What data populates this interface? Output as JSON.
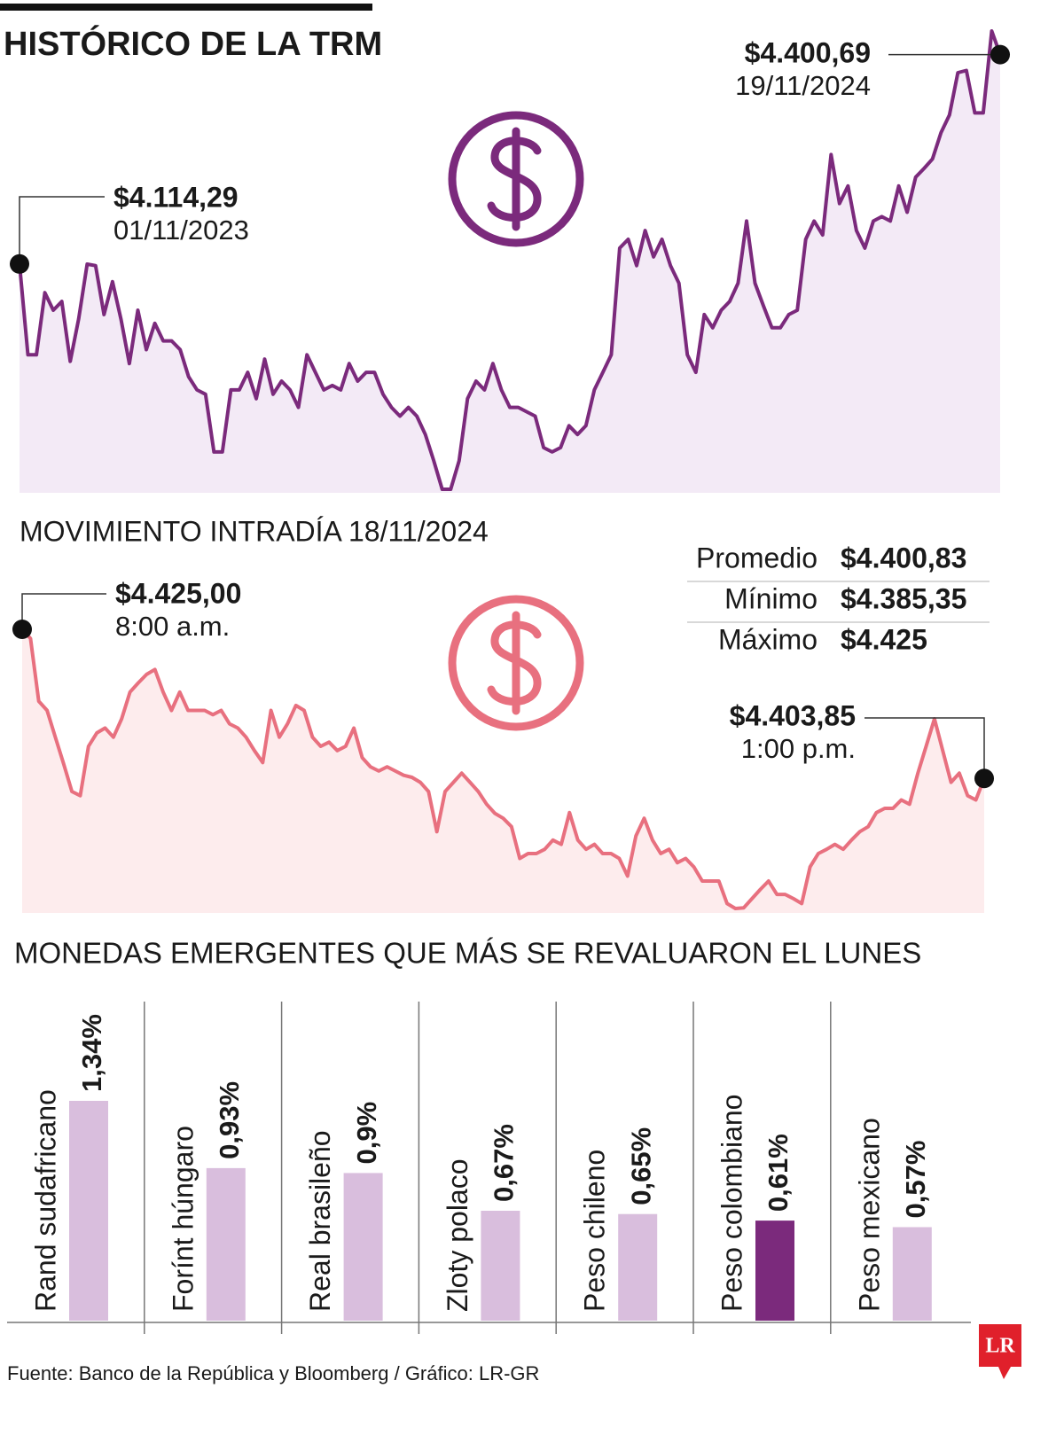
{
  "chart_data": [
    {
      "type": "line",
      "title": "HISTÓRICO DE LA TRM",
      "color": "#7b2a7c",
      "fill": "#f3eaf6",
      "values": [
        4114.29,
        3990,
        3990,
        4075,
        4051,
        4063,
        3981,
        4039,
        4114,
        4112,
        4045,
        4090,
        4039,
        3978,
        4051,
        3997,
        4033,
        4009,
        4009,
        3997,
        3960,
        3942,
        3936,
        3857,
        3857,
        3942,
        3942,
        3966,
        3930,
        3984,
        3936,
        3954,
        3942,
        3918,
        3990,
        3966,
        3942,
        3948,
        3942,
        3978,
        3954,
        3966,
        3966,
        3936,
        3918,
        3906,
        3918,
        3906,
        3881,
        3845,
        3806,
        3806,
        3845,
        3930,
        3954,
        3942,
        3978,
        3942,
        3918,
        3918,
        3912,
        3906,
        3863,
        3857,
        3863,
        3893,
        3881,
        3893,
        3942,
        3966,
        3990,
        4136,
        4148,
        4112,
        4160,
        4124,
        4148,
        4112,
        4088,
        3990,
        3966,
        4045,
        4027,
        4051,
        4063,
        4088,
        4173,
        4088,
        4057,
        4027,
        4027,
        4045,
        4051,
        4148,
        4173,
        4154,
        4264,
        4197,
        4221,
        4160,
        4136,
        4173,
        4179,
        4173,
        4221,
        4185,
        4233,
        4245,
        4258,
        4294,
        4318,
        4376,
        4379,
        4321,
        4321,
        4433,
        4400.69
      ],
      "annotations": [
        {
          "label": "$4.114,29",
          "date": "01/11/2023"
        },
        {
          "label": "$4.400,69",
          "date": "19/11/2024"
        }
      ]
    },
    {
      "type": "line",
      "title": "MOVIMIENTO INTRADÍA 18/11/2024",
      "color": "#e8707f",
      "fill": "#fdeced",
      "values": [
        4425,
        4423.7,
        4414.8,
        4413.5,
        4409.7,
        4405.9,
        4402,
        4401.4,
        4408.4,
        4410.3,
        4411,
        4409.7,
        4412.3,
        4416.1,
        4417.4,
        4418.6,
        4419.3,
        4416.1,
        4413.5,
        4416.1,
        4413.5,
        4413.5,
        4413.5,
        4412.9,
        4413.5,
        4411.6,
        4411,
        4409.7,
        4407.8,
        4406.1,
        4413.5,
        4409.7,
        4411.6,
        4414.2,
        4413.5,
        4409.7,
        4408.4,
        4409,
        4407.8,
        4408.4,
        4411,
        4406.8,
        4405.5,
        4404.9,
        4405.5,
        4404.9,
        4404.3,
        4404,
        4403.3,
        4402,
        4396.3,
        4402,
        4403.3,
        4404.6,
        4403.3,
        4402,
        4400.2,
        4398.9,
        4398.2,
        4397,
        4392.5,
        4393.2,
        4393.2,
        4393.8,
        4395.1,
        4394.5,
        4399,
        4395.1,
        4393.8,
        4394.5,
        4393.2,
        4393.2,
        4392.5,
        4390,
        4395.7,
        4398.2,
        4395.1,
        4393.2,
        4393.8,
        4391.9,
        4392.5,
        4391.3,
        4389.3,
        4389.3,
        4389.3,
        4386.1,
        4385.4,
        4385.5,
        4386.8,
        4388.1,
        4389.3,
        4387.4,
        4387.4,
        4386.8,
        4386.1,
        4391.3,
        4393.2,
        4393.8,
        4394.5,
        4393.8,
        4395.1,
        4396.3,
        4397,
        4399,
        4399.6,
        4399.6,
        4400.8,
        4400.2,
        4404.6,
        4408.4,
        4412.3,
        4407.8,
        4403.3,
        4404.6,
        4401.4,
        4400.8,
        4403.85
      ],
      "annotations": [
        {
          "label": "$4.425,00",
          "date": "8:00 a.m."
        },
        {
          "label": "$4.403,85",
          "date": "1:00 p.m."
        }
      ],
      "stats": [
        {
          "label": "Promedio",
          "value": "$4.400,83"
        },
        {
          "label": "Mínimo",
          "value": "$4.385,35"
        },
        {
          "label": "Máximo",
          "value": "$4.425"
        }
      ]
    },
    {
      "type": "bar",
      "title": "MONEDAS EMERGENTES QUE MÁS SE REVALUARON EL LUNES",
      "categories": [
        "Rand sudafricano",
        "Forínt húngaro",
        "Real brasileño",
        "Zloty polaco",
        "Peso chileno",
        "Peso colombiano",
        "Peso mexicano"
      ],
      "values": [
        1.34,
        0.93,
        0.9,
        0.67,
        0.65,
        0.61,
        0.57
      ],
      "value_labels": [
        "1,34%",
        "0,93%",
        "0,9%",
        "0,67%",
        "0,65%",
        "0,61%",
        "0,57%"
      ],
      "colors": [
        "#d9bedd",
        "#d9bedd",
        "#d9bedd",
        "#d9bedd",
        "#d9bedd",
        "#7b2a7c",
        "#d9bedd"
      ]
    }
  ],
  "source": "Fuente: Banco de la República y Bloomberg / Gráfico: LR-GR",
  "logo": "LR"
}
